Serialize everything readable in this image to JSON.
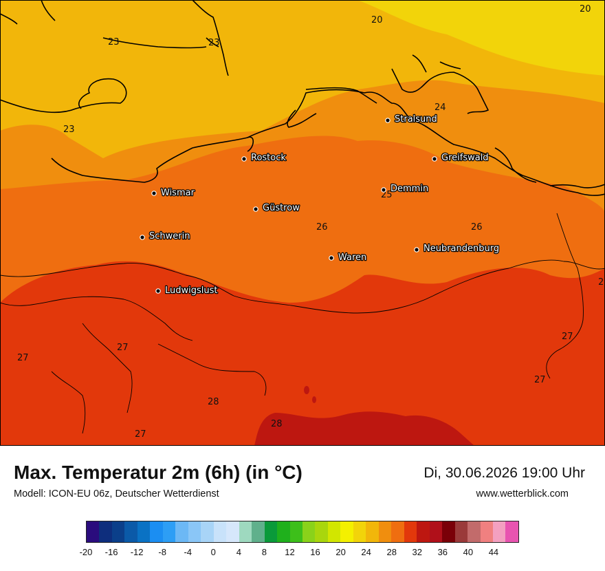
{
  "title": "Max. Temperatur 2m (6h) (in °C)",
  "model": "Modell: ICON-EU 06z, Deutscher Wetterdienst",
  "datetime": "Di, 30.06.2026 19:00 Uhr",
  "website": "www.wetterblick.com",
  "map": {
    "region": "Mecklenburg-Vorpommern",
    "cities": [
      {
        "name": "Stralsund"
      },
      {
        "name": "Rostock"
      },
      {
        "name": "Greifswald"
      },
      {
        "name": "Wismar"
      },
      {
        "name": "Demmin"
      },
      {
        "name": "Güstrow"
      },
      {
        "name": "Schwerin"
      },
      {
        "name": "Neubrandenburg"
      },
      {
        "name": "Waren"
      },
      {
        "name": "Ludwigslust"
      }
    ],
    "contour_labels": [
      "20",
      "20",
      "23",
      "23",
      "23",
      "24",
      "25",
      "26",
      "26",
      "27",
      "27",
      "27",
      "27",
      "27",
      "28",
      "28",
      "2"
    ],
    "colors": {
      "temp_20": "#f2d40a",
      "temp_23": "#f2b60a",
      "temp_24": "#f08e0e",
      "temp_26": "#ef6e10",
      "temp_27": "#e2380b",
      "temp_28": "#bd1710"
    }
  },
  "colorbar": {
    "unit": "°C",
    "tick_labels": [
      "-20",
      "-16",
      "-12",
      "-8",
      "-4",
      "0",
      "4",
      "8",
      "12",
      "16",
      "20",
      "24",
      "28",
      "32",
      "36",
      "40",
      "44"
    ],
    "colors": [
      "#2a0c7d",
      "#0e2e7d",
      "#0b3f8a",
      "#0b5aa8",
      "#0a72c4",
      "#1b8ef2",
      "#2d9ef5",
      "#6cb8f5",
      "#8ac6f7",
      "#a8d4f7",
      "#c8e2fa",
      "#d6e7fb",
      "#9ed9bf",
      "#60b08c",
      "#0a9a3a",
      "#1fb01c",
      "#3dbf1a",
      "#8ad21a",
      "#a9d60d",
      "#d2e600",
      "#f4f000",
      "#f2d40a",
      "#f2b60a",
      "#f08e0e",
      "#ef6e10",
      "#e2380b",
      "#bd1710",
      "#b0101a",
      "#7a0008",
      "#9a3a3a",
      "#c26b6b",
      "#f08080",
      "#f3a0c0",
      "#e854b0"
    ]
  }
}
